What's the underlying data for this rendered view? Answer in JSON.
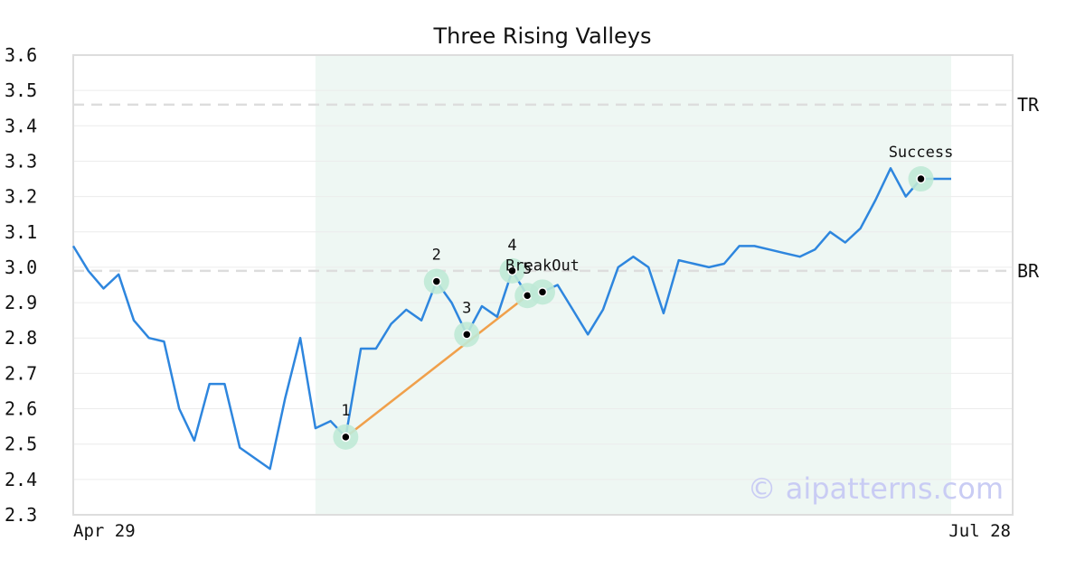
{
  "chart_data": {
    "type": "line",
    "title": "Three Rising Valleys",
    "xlabel": "",
    "ylabel": "",
    "ylim": [
      2.3,
      3.6
    ],
    "yticks": [
      2.3,
      2.4,
      2.5,
      2.6,
      2.7,
      2.8,
      2.9,
      3.0,
      3.1,
      3.2,
      3.3,
      3.4,
      3.5,
      3.6
    ],
    "ytick_labels": [
      "2.3",
      "2.4",
      "2.5",
      "2.6",
      "2.7",
      "2.8",
      "2.9",
      "3.0",
      "3.1",
      "3.2",
      "3.3",
      "3.4",
      "3.5",
      "3.6"
    ],
    "x_start_label": "Apr 29",
    "x_end_label": "Jul 28",
    "grid": true,
    "line_color": "#2e86de",
    "series": [
      {
        "values": [
          3.06,
          2.99,
          2.94,
          2.98,
          2.85,
          2.8,
          2.79,
          2.6,
          2.51,
          2.67,
          2.67,
          2.49,
          2.46,
          2.43,
          2.63,
          2.8,
          2.545,
          2.565,
          2.52,
          2.77,
          2.77,
          2.84,
          2.88,
          2.85,
          2.96,
          2.9,
          2.81,
          2.89,
          2.86,
          2.99,
          2.92,
          2.93,
          2.95,
          2.88,
          2.81,
          2.88,
          3.0,
          3.03,
          3.0,
          2.87,
          3.02,
          3.01,
          3.0,
          3.01,
          3.06,
          3.06,
          3.05,
          3.04,
          3.03,
          3.05,
          3.1,
          3.07,
          3.11,
          3.19,
          3.28,
          3.2,
          3.25,
          3.25,
          3.25
        ]
      }
    ],
    "pattern_region": {
      "start_index": 16,
      "end_index": 58,
      "color": "#eef7f3"
    },
    "levels": [
      {
        "label": "TR",
        "value": 3.46
      },
      {
        "label": "BR",
        "value": 2.99
      }
    ],
    "trend_line": {
      "from_index": 18,
      "to_index": 30,
      "color": "#f0a04b"
    },
    "annotations": [
      {
        "label": "1",
        "index": 18,
        "value": 2.52
      },
      {
        "label": "2",
        "index": 24,
        "value": 2.96
      },
      {
        "label": "3",
        "index": 26,
        "value": 2.81
      },
      {
        "label": "4",
        "index": 29,
        "value": 2.99
      },
      {
        "label": "5",
        "index": 30,
        "value": 2.92
      },
      {
        "label": "BreakOut",
        "index": 31,
        "value": 2.93
      },
      {
        "label": "Success",
        "index": 56,
        "value": 3.25
      }
    ],
    "watermark": "© aipatterns.com"
  }
}
